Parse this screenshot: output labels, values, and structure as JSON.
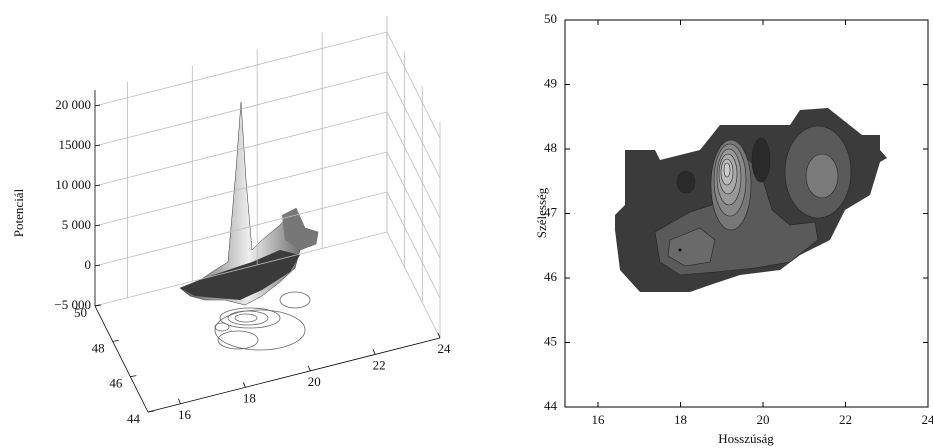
{
  "chart_data": [
    {
      "type": "surface3d",
      "zlabel": "Potenciál",
      "xlim": [
        15,
        24
      ],
      "xticks": [
        16,
        18,
        20,
        22,
        24
      ],
      "ylim": [
        44,
        50
      ],
      "yticks": [
        44,
        46,
        48,
        50
      ],
      "zlim": [
        -5000,
        22000
      ],
      "zticks": [
        {
          "value": -5000,
          "label": "−5 000"
        },
        0,
        {
          "value": 5000,
          "label": "5 000"
        },
        {
          "value": 10000,
          "label": "10 000"
        },
        15000,
        {
          "value": 20000,
          "label": "20 000"
        }
      ],
      "grid": true
    },
    {
      "type": "contour",
      "xlabel": "Hosszúság",
      "ylabel": "Szélesség",
      "xlim": [
        15.2,
        24
      ],
      "xticks": [
        16,
        18,
        20,
        22,
        24
      ],
      "ylim": [
        44,
        50
      ],
      "yticks": [
        44,
        45,
        46,
        47,
        48,
        49,
        50
      ]
    }
  ]
}
